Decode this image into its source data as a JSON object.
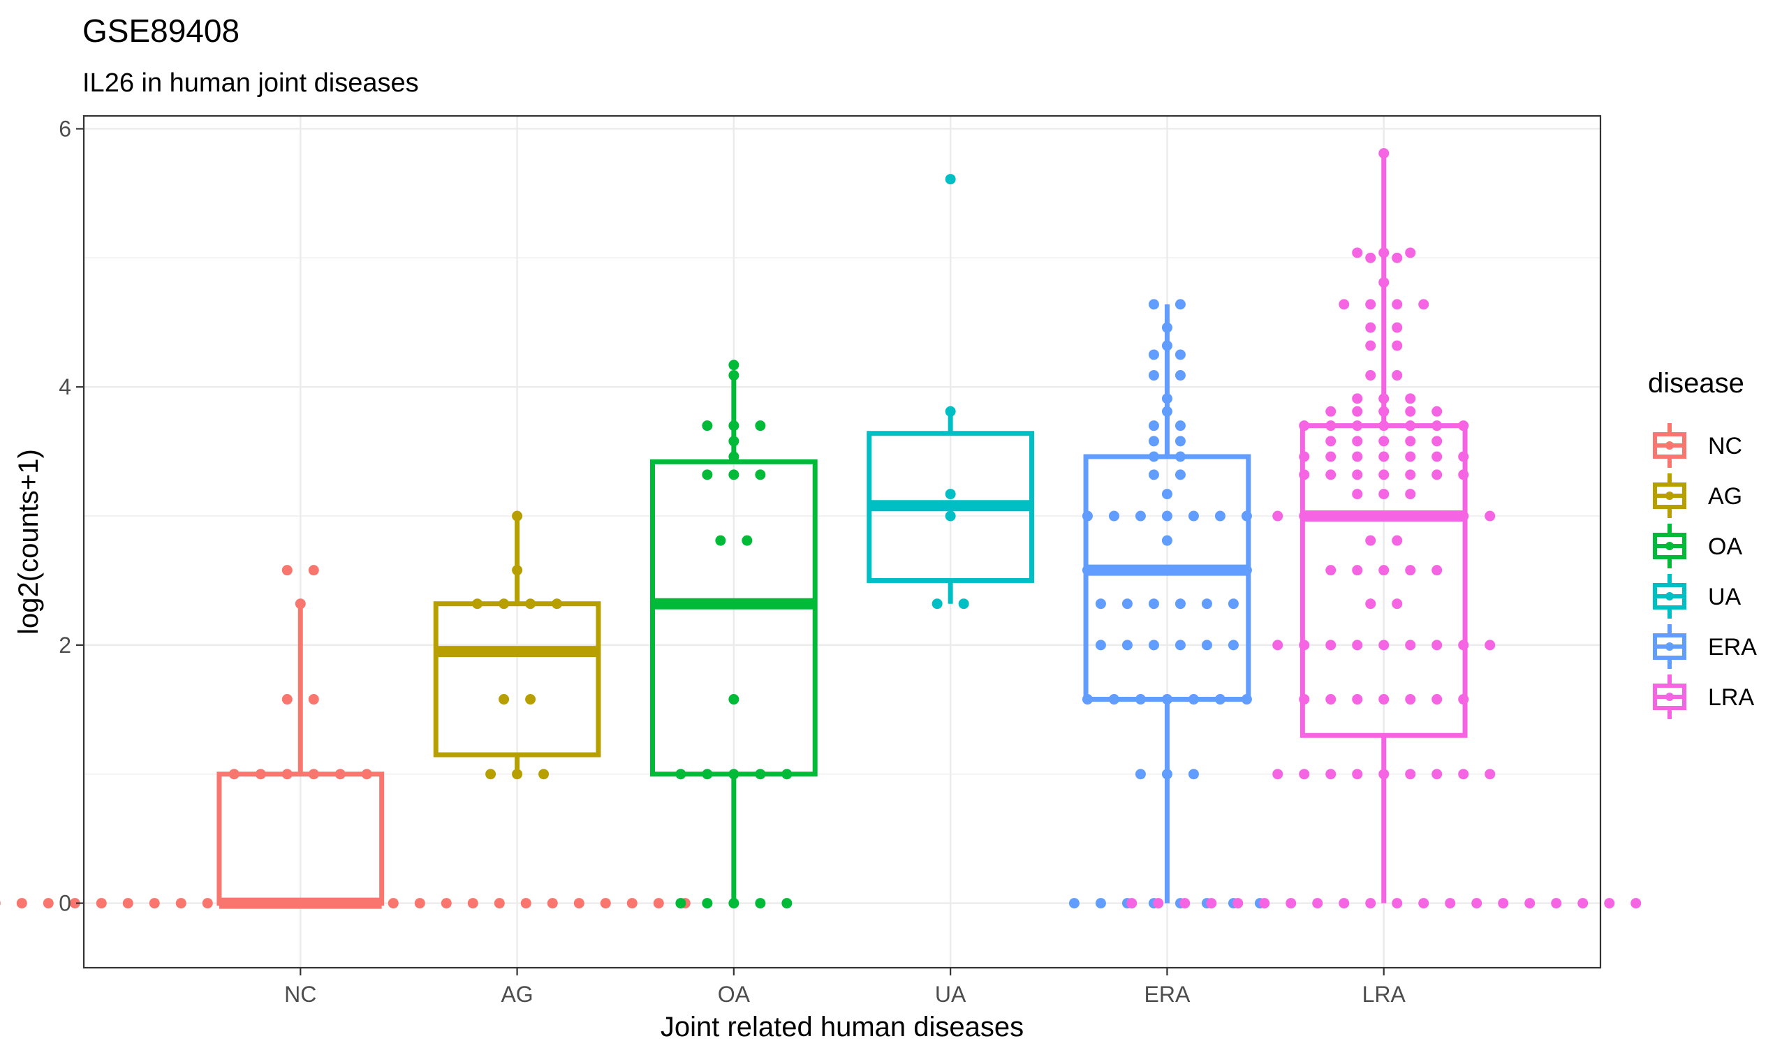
{
  "chart_data": {
    "type": "boxplot",
    "title": "GSE89408",
    "subtitle": "IL26 in human joint diseases",
    "xlabel": "Joint related human diseases",
    "ylabel": "log2(counts+1)",
    "ylim": [
      -0.5,
      6.1
    ],
    "y_ticks": [
      0,
      2,
      4,
      6
    ],
    "categories": [
      "NC",
      "AG",
      "OA",
      "UA",
      "ERA",
      "LRA"
    ],
    "grid": true,
    "legend": {
      "title": "disease",
      "position": "right",
      "entries": [
        "NC",
        "AG",
        "OA",
        "UA",
        "ERA",
        "LRA"
      ]
    },
    "colors": {
      "NC": "#F8766D",
      "AG": "#B79F00",
      "OA": "#00BA38",
      "UA": "#00BFC4",
      "ERA": "#619CFF",
      "LRA": "#F564E3",
      "grid": "#EBEBEB",
      "axis": "#333333",
      "text": "#000000",
      "ticktext": "#4D4D4D"
    },
    "series": [
      {
        "name": "NC",
        "stats": {
          "lower": 0,
          "q1": 0,
          "median": 0,
          "q3": 1,
          "upper": 2.32
        },
        "points": [
          {
            "y": 2.58,
            "n": 2
          },
          {
            "y": 2.32,
            "n": 1
          },
          {
            "y": 1.58,
            "n": 2
          },
          {
            "y": 1.0,
            "n": 6
          },
          {
            "y": 0,
            "n": 30
          }
        ]
      },
      {
        "name": "AG",
        "stats": {
          "lower": 1.0,
          "q1": 1.15,
          "median": 1.95,
          "q3": 2.32,
          "upper": 3.0
        },
        "points": [
          {
            "y": 3.0,
            "n": 1
          },
          {
            "y": 2.58,
            "n": 1
          },
          {
            "y": 2.32,
            "n": 4
          },
          {
            "y": 1.58,
            "n": 2
          },
          {
            "y": 1.0,
            "n": 3
          }
        ]
      },
      {
        "name": "OA",
        "stats": {
          "lower": 0,
          "q1": 1.0,
          "median": 2.32,
          "q3": 3.42,
          "upper": 4.09
        },
        "points": [
          {
            "y": 4.17,
            "n": 1
          },
          {
            "y": 4.09,
            "n": 1
          },
          {
            "y": 3.7,
            "n": 3
          },
          {
            "y": 3.58,
            "n": 1
          },
          {
            "y": 3.46,
            "n": 1
          },
          {
            "y": 3.32,
            "n": 3
          },
          {
            "y": 2.81,
            "n": 2
          },
          {
            "y": 1.58,
            "n": 1
          },
          {
            "y": 1.0,
            "n": 5
          },
          {
            "y": 0,
            "n": 5
          }
        ]
      },
      {
        "name": "UA",
        "stats": {
          "lower": 2.32,
          "q1": 2.5,
          "median": 3.08,
          "q3": 3.64,
          "upper": 3.81
        },
        "points": [
          {
            "y": 5.61,
            "n": 1
          },
          {
            "y": 3.81,
            "n": 1
          },
          {
            "y": 3.17,
            "n": 1
          },
          {
            "y": 3.0,
            "n": 1
          },
          {
            "y": 2.32,
            "n": 2
          }
        ]
      },
      {
        "name": "ERA",
        "stats": {
          "lower": 0,
          "q1": 1.58,
          "median": 2.58,
          "q3": 3.46,
          "upper": 4.64
        },
        "points": [
          {
            "y": 4.64,
            "n": 2
          },
          {
            "y": 4.46,
            "n": 1
          },
          {
            "y": 4.32,
            "n": 1
          },
          {
            "y": 4.25,
            "n": 2
          },
          {
            "y": 4.09,
            "n": 2
          },
          {
            "y": 3.91,
            "n": 1
          },
          {
            "y": 3.81,
            "n": 1
          },
          {
            "y": 3.7,
            "n": 2
          },
          {
            "y": 3.58,
            "n": 2
          },
          {
            "y": 3.46,
            "n": 2
          },
          {
            "y": 3.32,
            "n": 2
          },
          {
            "y": 3.17,
            "n": 1
          },
          {
            "y": 3.0,
            "n": 7
          },
          {
            "y": 2.81,
            "n": 1
          },
          {
            "y": 2.58,
            "n": 7
          },
          {
            "y": 2.32,
            "n": 6
          },
          {
            "y": 2.0,
            "n": 6
          },
          {
            "y": 1.58,
            "n": 7
          },
          {
            "y": 1.0,
            "n": 3
          },
          {
            "y": 0,
            "n": 8
          }
        ]
      },
      {
        "name": "LRA",
        "stats": {
          "lower": 0,
          "q1": 1.3,
          "median": 3.0,
          "q3": 3.7,
          "upper": 5.81
        },
        "points": [
          {
            "y": 5.81,
            "n": 1
          },
          {
            "y": 5.04,
            "n": 3
          },
          {
            "y": 5.0,
            "n": 2
          },
          {
            "y": 4.81,
            "n": 1
          },
          {
            "y": 4.64,
            "n": 4
          },
          {
            "y": 4.46,
            "n": 2
          },
          {
            "y": 4.32,
            "n": 2
          },
          {
            "y": 4.09,
            "n": 2
          },
          {
            "y": 3.91,
            "n": 3
          },
          {
            "y": 3.81,
            "n": 5
          },
          {
            "y": 3.7,
            "n": 7
          },
          {
            "y": 3.58,
            "n": 5
          },
          {
            "y": 3.46,
            "n": 7
          },
          {
            "y": 3.32,
            "n": 7
          },
          {
            "y": 3.17,
            "n": 3
          },
          {
            "y": 3.0,
            "n": 9
          },
          {
            "y": 2.81,
            "n": 2
          },
          {
            "y": 2.58,
            "n": 5
          },
          {
            "y": 2.32,
            "n": 2
          },
          {
            "y": 2.0,
            "n": 9
          },
          {
            "y": 1.58,
            "n": 7
          },
          {
            "y": 1.0,
            "n": 9
          },
          {
            "y": 0,
            "n": 20
          }
        ]
      }
    ]
  }
}
